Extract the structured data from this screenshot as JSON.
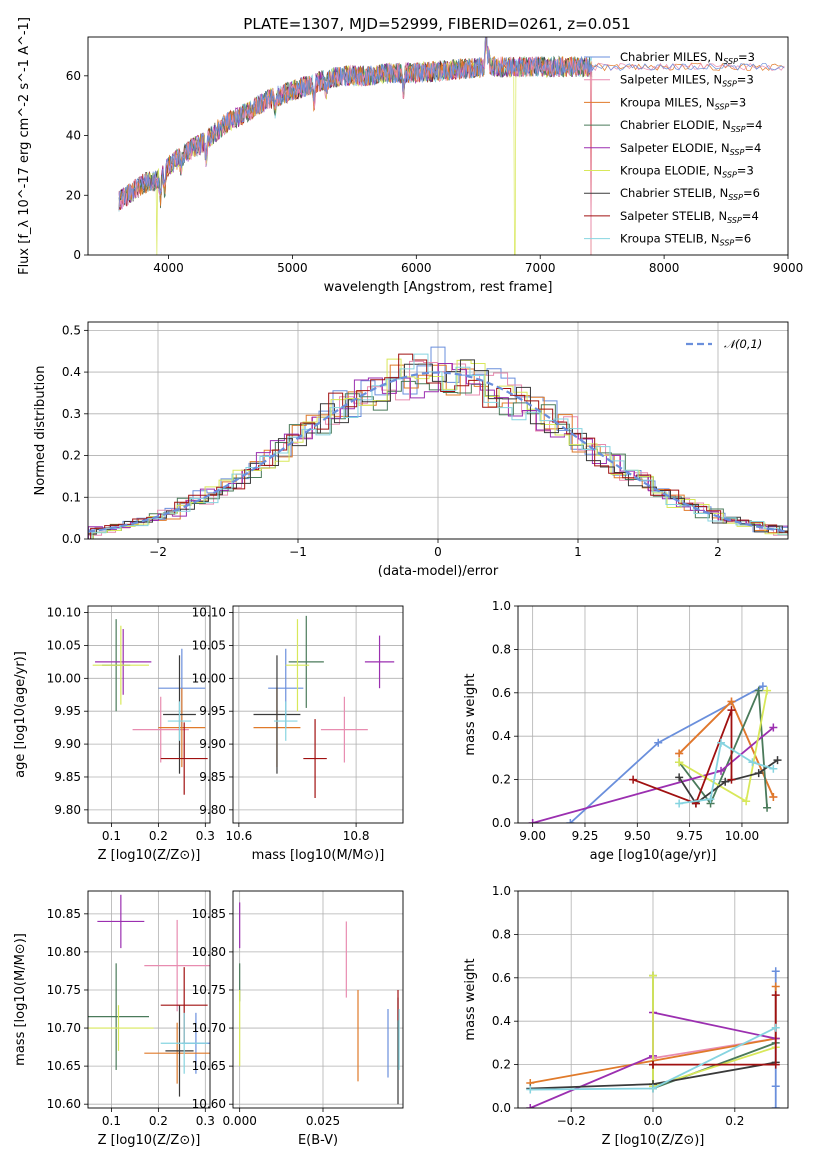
{
  "figure": {
    "title": "PLATE=1307, MJD=52999, FIBERID=0261, z=0.051"
  },
  "models": [
    {
      "name": "Chabrier MILES",
      "nssp": "3",
      "color": "#6a8fdc"
    },
    {
      "name": "Salpeter MILES",
      "nssp": "3",
      "color": "#e88cb0"
    },
    {
      "name": "Kroupa MILES",
      "nssp": "3",
      "color": "#e07a2a"
    },
    {
      "name": "Chabrier ELODIE",
      "nssp": "4",
      "color": "#4a7a5a"
    },
    {
      "name": "Salpeter ELODIE",
      "nssp": "4",
      "color": "#9b2fb0"
    },
    {
      "name": "Kroupa ELODIE",
      "nssp": "3",
      "color": "#d8e85a"
    },
    {
      "name": "Chabrier STELIB",
      "nssp": "6",
      "color": "#3a3a3a"
    },
    {
      "name": "Salpeter STELIB",
      "nssp": "4",
      "color": "#a01010"
    },
    {
      "name": "Kroupa STELIB",
      "nssp": "6",
      "color": "#86d4e0"
    }
  ],
  "chart_data": [
    {
      "type": "line",
      "title": "PLATE=1307, MJD=52999, FIBERID=0261, z=0.051",
      "xlabel": "wavelength [Angstrom, rest frame]",
      "ylabel": "Flux [f_λ 10^-17 erg cm^-2 s^-1 A^-1]",
      "xlim": [
        3350,
        9000
      ],
      "ylim": [
        0,
        73
      ],
      "xticks": [
        "4000",
        "5000",
        "6000",
        "7000",
        "8000",
        "9000"
      ],
      "yticks": [
        "0",
        "20",
        "40",
        "60"
      ],
      "legend": "top-right",
      "continuum": {
        "x": [
          3600,
          3700,
          3800,
          3900,
          4000,
          4100,
          4200,
          4300,
          4400,
          4500,
          4600,
          4800,
          5000,
          5200,
          5400,
          5600,
          5800,
          6000,
          6300,
          6600,
          6800,
          7000,
          7400
        ],
        "y": [
          18,
          21,
          24,
          25,
          30,
          33,
          36,
          38,
          42,
          45,
          47,
          52,
          55,
          58,
          60,
          60,
          61,
          61,
          62,
          63,
          63,
          63,
          63
        ]
      },
      "features": [
        {
          "note": "dips to 0 near 3900 (Kroupa ELODIE)",
          "x": 3905
        },
        {
          "note": "dips to 0 near 6800 (Kroupa ELODIE)",
          "x": 6795
        },
        {
          "note": "dips to 0 near 7400 (Salpeter MILES / Kroupa MILES)",
          "x": 7410
        },
        {
          "note": "Halpha peak ~75 near 6565",
          "x": 6565
        }
      ]
    },
    {
      "type": "histogram",
      "xlabel": "(data-model)/error",
      "ylabel": "Normed distribution",
      "xlim": [
        -2.5,
        2.5
      ],
      "ylim": [
        0,
        0.52
      ],
      "xticks": [
        "−2",
        "−1",
        "0",
        "1",
        "2"
      ],
      "yticks": [
        "0.0",
        "0.1",
        "0.2",
        "0.3",
        "0.4",
        "0.5"
      ],
      "reference": {
        "name": "𝒩(0,1)",
        "mu": 0,
        "sigma": 1
      },
      "legend": "top-right"
    },
    {
      "type": "scatter",
      "xlabel": "Z [log10(Z/Z⊙)]",
      "ylabel": "age [log10(age/yr)]",
      "xlim": [
        0.05,
        0.31
      ],
      "ylim": [
        9.78,
        10.11
      ],
      "xticks": [
        "0.1",
        "0.2",
        "0.3"
      ],
      "yticks": [
        "9.80",
        "9.85",
        "9.90",
        "9.95",
        "10.00",
        "10.05",
        "10.10"
      ],
      "points": [
        {
          "model": "Chabrier MILES",
          "x": 0.25,
          "y": 9.985,
          "xerr": 0.05,
          "yerr": 0.06
        },
        {
          "model": "Salpeter MILES",
          "x": 0.205,
          "y": 9.922,
          "xerr": 0.06,
          "yerr": 0.05
        },
        {
          "model": "Kroupa MILES",
          "x": 0.25,
          "y": 9.925,
          "xerr": 0.05,
          "yerr": 0.06
        },
        {
          "model": "Chabrier ELODIE",
          "x": 0.11,
          "y": 10.02,
          "xerr": 0.03,
          "yerr": 0.07
        },
        {
          "model": "Salpeter ELODIE",
          "x": 0.125,
          "y": 10.025,
          "xerr": 0.06,
          "yerr": 0.05
        },
        {
          "model": "Kroupa ELODIE",
          "x": 0.12,
          "y": 10.02,
          "xerr": 0.06,
          "yerr": 0.06
        },
        {
          "model": "Chabrier STELIB",
          "x": 0.245,
          "y": 9.945,
          "xerr": 0.035,
          "yerr": 0.09
        },
        {
          "model": "Salpeter STELIB",
          "x": 0.255,
          "y": 9.878,
          "xerr": 0.05,
          "yerr": 0.055
        },
        {
          "model": "Kroupa STELIB",
          "x": 0.245,
          "y": 9.935,
          "xerr": 0.025,
          "yerr": 0.03
        }
      ]
    },
    {
      "type": "scatter",
      "xlabel": "mass [log10(M/M⊙)]",
      "ylabel": "",
      "xlim": [
        10.59,
        10.88
      ],
      "ylim": [
        9.78,
        10.11
      ],
      "xticks": [
        "10.6",
        "10.8"
      ],
      "yticks": [
        "9.80",
        "9.85",
        "9.90",
        "9.95",
        "10.00",
        "10.05",
        "10.10"
      ],
      "points": [
        {
          "model": "Chabrier MILES",
          "x": 10.68,
          "y": 9.985,
          "xerr": 0.03,
          "yerr": 0.06
        },
        {
          "model": "Salpeter MILES",
          "x": 10.78,
          "y": 9.922,
          "xerr": 0.04,
          "yerr": 0.05
        },
        {
          "model": "Kroupa MILES",
          "x": 10.665,
          "y": 9.925,
          "xerr": 0.04,
          "yerr": 0.06
        },
        {
          "model": "Chabrier ELODIE",
          "x": 10.715,
          "y": 10.025,
          "xerr": 0.03,
          "yerr": 0.07
        },
        {
          "model": "Salpeter ELODIE",
          "x": 10.84,
          "y": 10.025,
          "xerr": 0.025,
          "yerr": 0.04
        },
        {
          "model": "Kroupa ELODIE",
          "x": 10.7,
          "y": 10.02,
          "xerr": 0.02,
          "yerr": 0.07
        },
        {
          "model": "Chabrier STELIB",
          "x": 10.665,
          "y": 9.945,
          "xerr": 0.04,
          "yerr": 0.09
        },
        {
          "model": "Salpeter STELIB",
          "x": 10.73,
          "y": 9.878,
          "xerr": 0.02,
          "yerr": 0.06
        },
        {
          "model": "Kroupa STELIB",
          "x": 10.68,
          "y": 9.935,
          "xerr": 0.02,
          "yerr": 0.03
        }
      ]
    },
    {
      "type": "line",
      "xlabel": "age [log10(age/yr)]",
      "ylabel": "mass weight",
      "xlim": [
        8.93,
        10.22
      ],
      "ylim": [
        0,
        1.0
      ],
      "xticks": [
        "9.00",
        "9.25",
        "9.50",
        "9.75",
        "10.00"
      ],
      "yticks": [
        "0.0",
        "0.2",
        "0.4",
        "0.6",
        "0.8",
        "1.0"
      ],
      "series": [
        {
          "model": "Chabrier MILES",
          "x": [
            9.18,
            9.6,
            10.1
          ],
          "y": [
            0.0,
            0.37,
            0.63
          ]
        },
        {
          "model": "Salpeter MILES",
          "x": [
            9.7,
            9.95,
            10.15
          ],
          "y": [
            0.32,
            0.56,
            0.12
          ]
        },
        {
          "model": "Kroupa MILES",
          "x": [
            9.7,
            9.95,
            10.15
          ],
          "y": [
            0.32,
            0.56,
            0.12
          ]
        },
        {
          "model": "Chabrier ELODIE",
          "x": [
            9.7,
            9.85,
            10.08,
            10.12
          ],
          "y": [
            0.28,
            0.09,
            0.61,
            0.07
          ]
        },
        {
          "model": "Salpeter ELODIE",
          "x": [
            9.0,
            9.9,
            10.15
          ],
          "y": [
            0.0,
            0.24,
            0.44
          ]
        },
        {
          "model": "Kroupa ELODIE",
          "x": [
            9.7,
            10.02,
            10.12
          ],
          "y": [
            0.28,
            0.1,
            0.61
          ]
        },
        {
          "model": "Chabrier STELIB",
          "x": [
            9.7,
            9.78,
            9.92,
            10.08,
            10.17
          ],
          "y": [
            0.21,
            0.09,
            0.19,
            0.23,
            0.29
          ]
        },
        {
          "model": "Salpeter STELIB",
          "x": [
            9.48,
            9.78,
            9.95,
            9.95
          ],
          "y": [
            0.2,
            0.09,
            0.52,
            0.2
          ]
        },
        {
          "model": "Kroupa STELIB",
          "x": [
            9.7,
            9.85,
            9.9,
            10.05,
            10.15
          ],
          "y": [
            0.09,
            0.11,
            0.37,
            0.28,
            0.25
          ]
        }
      ]
    },
    {
      "type": "scatter",
      "xlabel": "Z [log10(Z/Z⊙)]",
      "ylabel": "mass [log10(M/M⊙)]",
      "xlim": [
        0.05,
        0.31
      ],
      "ylim": [
        10.595,
        10.88
      ],
      "xticks": [
        "0.1",
        "0.2",
        "0.3"
      ],
      "yticks": [
        "10.60",
        "10.65",
        "10.70",
        "10.75",
        "10.80",
        "10.85"
      ],
      "points": [
        {
          "model": "Chabrier MILES",
          "x": 0.28,
          "y": 10.68,
          "xerr": 0.03,
          "yerr": 0.04
        },
        {
          "model": "Salpeter MILES",
          "x": 0.24,
          "y": 10.782,
          "xerr": 0.07,
          "yerr": 0.06
        },
        {
          "model": "Kroupa MILES",
          "x": 0.24,
          "y": 10.667,
          "xerr": 0.07,
          "yerr": 0.04
        },
        {
          "model": "Chabrier ELODIE",
          "x": 0.11,
          "y": 10.715,
          "xerr": 0.07,
          "yerr": 0.07
        },
        {
          "model": "Salpeter ELODIE",
          "x": 0.12,
          "y": 10.84,
          "xerr": 0.05,
          "yerr": 0.035
        },
        {
          "model": "Kroupa ELODIE",
          "x": 0.115,
          "y": 10.7,
          "xerr": 0.075,
          "yerr": 0.03
        },
        {
          "model": "Chabrier STELIB",
          "x": 0.245,
          "y": 10.67,
          "xerr": 0.03,
          "yerr": 0.06
        },
        {
          "model": "Salpeter STELIB",
          "x": 0.255,
          "y": 10.73,
          "xerr": 0.05,
          "yerr": 0.05
        },
        {
          "model": "Kroupa STELIB",
          "x": 0.255,
          "y": 10.68,
          "xerr": 0.05,
          "yerr": 0.04
        }
      ]
    },
    {
      "type": "scatter",
      "xlabel": "E(B-V)",
      "ylabel": "",
      "xlim": [
        -0.002,
        0.049
      ],
      "ylim": [
        10.595,
        10.88
      ],
      "xticks": [
        "0.000",
        "0.025"
      ],
      "yticks": [
        "10.60",
        "10.65",
        "10.70",
        "10.75",
        "10.80",
        "10.85"
      ],
      "points": [
        {
          "model": "Chabrier MILES",
          "x": 0.0445,
          "y": 10.68,
          "xerr": 0,
          "yerr": 0.045
        },
        {
          "model": "Salpeter MILES",
          "x": 0.032,
          "y": 10.79,
          "xerr": 0,
          "yerr": 0.05
        },
        {
          "model": "Kroupa MILES",
          "x": 0.0355,
          "y": 10.69,
          "xerr": 0,
          "yerr": 0.06
        },
        {
          "model": "Chabrier ELODIE",
          "x": 0.0,
          "y": 10.76,
          "xerr": 0,
          "yerr": 0.025
        },
        {
          "model": "Salpeter ELODIE",
          "x": 0.0,
          "y": 10.835,
          "xerr": 0,
          "yerr": 0.03
        },
        {
          "model": "Kroupa ELODIE",
          "x": 0.0,
          "y": 10.7,
          "xerr": 0,
          "yerr": 0.05
        },
        {
          "model": "Chabrier STELIB",
          "x": 0.0475,
          "y": 10.67,
          "xerr": 0,
          "yerr": 0.07
        },
        {
          "model": "Salpeter STELIB",
          "x": 0.0475,
          "y": 10.73,
          "xerr": 0,
          "yerr": 0.02
        },
        {
          "model": "Kroupa STELIB",
          "x": 0.0478,
          "y": 10.685,
          "xerr": 0,
          "yerr": 0.04
        }
      ]
    },
    {
      "type": "line",
      "xlabel": "Z [log10(Z/Z⊙)]",
      "ylabel": "mass weight",
      "xlim": [
        -0.33,
        0.33
      ],
      "ylim": [
        0,
        1.0
      ],
      "xticks": [
        "−0.2",
        "0.0",
        "0.2"
      ],
      "yticks": [
        "0.0",
        "0.2",
        "0.4",
        "0.6",
        "0.8",
        "1.0"
      ],
      "series": [
        {
          "model": "Chabrier MILES",
          "x": [
            0.3,
            0.3,
            0.3
          ],
          "y": [
            0.0,
            0.1,
            0.63
          ]
        },
        {
          "model": "Salpeter MILES",
          "x": [
            0.0,
            0.3
          ],
          "y": [
            0.23,
            0.32
          ]
        },
        {
          "model": "Kroupa MILES",
          "x": [
            -0.3,
            0.3,
            0.3
          ],
          "y": [
            0.115,
            0.32,
            0.56
          ]
        },
        {
          "model": "Chabrier ELODIE",
          "x": [
            0.0,
            0.0,
            0.3
          ],
          "y": [
            0.61,
            0.09,
            0.3
          ]
        },
        {
          "model": "Salpeter ELODIE",
          "x": [
            -0.3,
            0.0,
            0.0,
            0.3
          ],
          "y": [
            0.0,
            0.24,
            0.44,
            0.32
          ]
        },
        {
          "model": "Kroupa ELODIE",
          "x": [
            0.0,
            0.0,
            0.3
          ],
          "y": [
            0.61,
            0.1,
            0.28
          ]
        },
        {
          "model": "Chabrier STELIB",
          "x": [
            -0.3,
            0.0,
            0.3
          ],
          "y": [
            0.09,
            0.11,
            0.21
          ]
        },
        {
          "model": "Salpeter STELIB",
          "x": [
            0.0,
            0.0,
            0.3,
            0.3
          ],
          "y": [
            0.2,
            0.2,
            0.2,
            0.52
          ]
        },
        {
          "model": "Kroupa STELIB",
          "x": [
            -0.3,
            0.0,
            0.3
          ],
          "y": [
            0.085,
            0.09,
            0.37
          ]
        }
      ]
    }
  ]
}
